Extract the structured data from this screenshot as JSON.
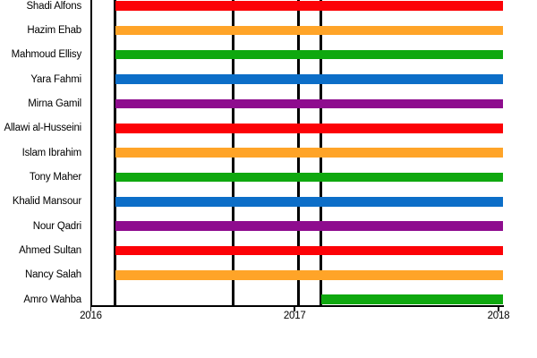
{
  "page": {
    "background": "#ffffff"
  },
  "chart_data": {
    "type": "gantt",
    "title": "",
    "xlabel": "",
    "ylabel": "",
    "legend": "none",
    "grid": "off",
    "x_axis": {
      "tick_labels": [
        "2016",
        "2017",
        "2018"
      ],
      "tick_years": [
        2016,
        2017,
        2018
      ],
      "range_years": [
        2016,
        2018.19
      ]
    },
    "rows": [
      {
        "label": "Shadi Alfons",
        "color": "red",
        "start_year": 2016.12,
        "end_year": 2018.02
      },
      {
        "label": "Hazim Ehab",
        "color": "orange",
        "start_year": 2016.12,
        "end_year": 2018.02
      },
      {
        "label": "Mahmoud Ellisy",
        "color": "green",
        "start_year": 2016.12,
        "end_year": 2018.02
      },
      {
        "label": "Yara Fahmi",
        "color": "blue",
        "start_year": 2016.12,
        "end_year": 2018.02
      },
      {
        "label": "Mirna Gamil",
        "color": "purple",
        "start_year": 2016.12,
        "end_year": 2018.02
      },
      {
        "label": "Allawi al-Husseini",
        "color": "red",
        "start_year": 2016.12,
        "end_year": 2018.02
      },
      {
        "label": "Islam Ibrahim",
        "color": "orange",
        "start_year": 2016.12,
        "end_year": 2018.02
      },
      {
        "label": "Tony Maher",
        "color": "green",
        "start_year": 2016.12,
        "end_year": 2018.02
      },
      {
        "label": "Khalid Mansour",
        "color": "blue",
        "start_year": 2016.12,
        "end_year": 2018.02
      },
      {
        "label": "Nour Qadri",
        "color": "purple",
        "start_year": 2016.12,
        "end_year": 2018.02
      },
      {
        "label": "Ahmed Sultan",
        "color": "red",
        "start_year": 2016.12,
        "end_year": 2018.02
      },
      {
        "label": "Nancy Salah",
        "color": "orange",
        "start_year": 2016.12,
        "end_year": 2018.02
      },
      {
        "label": "Amro Wahba",
        "color": "green",
        "start_year": 2017.13,
        "end_year": 2018.02
      }
    ],
    "event_lines_years": [
      2016.12,
      2016.7,
      2017.02,
      2017.13
    ],
    "palette": {
      "red": "#FC0207",
      "orange": "#FFA428",
      "green": "#0FA80F",
      "blue": "#0C6EC8",
      "purple": "#8E0C8E"
    },
    "axis_color": "#000000"
  }
}
